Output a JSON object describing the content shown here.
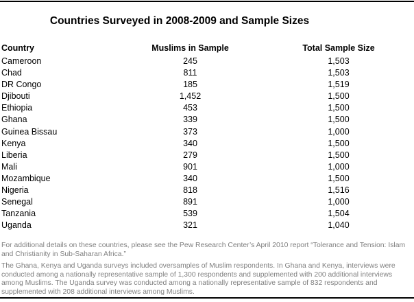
{
  "page": {
    "title": "Countries Surveyed in 2008-2009 and Sample Sizes"
  },
  "table": {
    "columns": [
      "Country",
      "Muslims in Sample",
      "Total Sample Size"
    ],
    "rows": [
      {
        "country": "Cameroon",
        "muslims": "245",
        "total": "1,503"
      },
      {
        "country": "Chad",
        "muslims": "811",
        "total": "1,503"
      },
      {
        "country": "DR Congo",
        "muslims": "185",
        "total": "1,519"
      },
      {
        "country": "Djibouti",
        "muslims": "1,452",
        "total": "1,500"
      },
      {
        "country": "Ethiopia",
        "muslims": "453",
        "total": "1,500"
      },
      {
        "country": "Ghana",
        "muslims": "339",
        "total": "1,500"
      },
      {
        "country": "Guinea Bissau",
        "muslims": "373",
        "total": "1,000"
      },
      {
        "country": "Kenya",
        "muslims": "340",
        "total": "1,500"
      },
      {
        "country": "Liberia",
        "muslims": "279",
        "total": "1,500"
      },
      {
        "country": "Mali",
        "muslims": "901",
        "total": "1,000"
      },
      {
        "country": "Mozambique",
        "muslims": "340",
        "total": "1,500"
      },
      {
        "country": "Nigeria",
        "muslims": "818",
        "total": "1,516"
      },
      {
        "country": "Senegal",
        "muslims": "891",
        "total": "1,000"
      },
      {
        "country": "Tanzania",
        "muslims": "539",
        "total": "1,504"
      },
      {
        "country": "Uganda",
        "muslims": "321",
        "total": "1,040"
      }
    ]
  },
  "footnotes": [
    "For additional details on these countries, please see the Pew Research Center’s April 2010 report “Tolerance and Tension: Islam and Christianity in Sub-Saharan Africa.”",
    "The Ghana, Kenya and Uganda surveys included oversamples of Muslim respondents. In Ghana and Kenya, interviews were conducted among a nationally representative sample of 1,300 respondents and supplemented with 200 additional interviews among Muslims. The Uganda survey was conducted among a nationally representative sample of 832 respondents and supplemented with 208 additional interviews among Muslims."
  ],
  "colors": {
    "background": "#ffffff",
    "text": "#000000",
    "footnote_text": "#808080",
    "rule": "#000000"
  },
  "chart_data": {
    "type": "table",
    "title": "Countries Surveyed in 2008-2009 and Sample Sizes",
    "columns": [
      "Country",
      "Muslims in Sample",
      "Total Sample Size"
    ],
    "rows": [
      [
        "Cameroon",
        245,
        1503
      ],
      [
        "Chad",
        811,
        1503
      ],
      [
        "DR Congo",
        185,
        1519
      ],
      [
        "Djibouti",
        1452,
        1500
      ],
      [
        "Ethiopia",
        453,
        1500
      ],
      [
        "Ghana",
        339,
        1500
      ],
      [
        "Guinea Bissau",
        373,
        1000
      ],
      [
        "Kenya",
        340,
        1500
      ],
      [
        "Liberia",
        279,
        1500
      ],
      [
        "Mali",
        901,
        1000
      ],
      [
        "Mozambique",
        340,
        1500
      ],
      [
        "Nigeria",
        818,
        1516
      ],
      [
        "Senegal",
        891,
        1000
      ],
      [
        "Tanzania",
        539,
        1504
      ],
      [
        "Uganda",
        321,
        1040
      ]
    ]
  }
}
